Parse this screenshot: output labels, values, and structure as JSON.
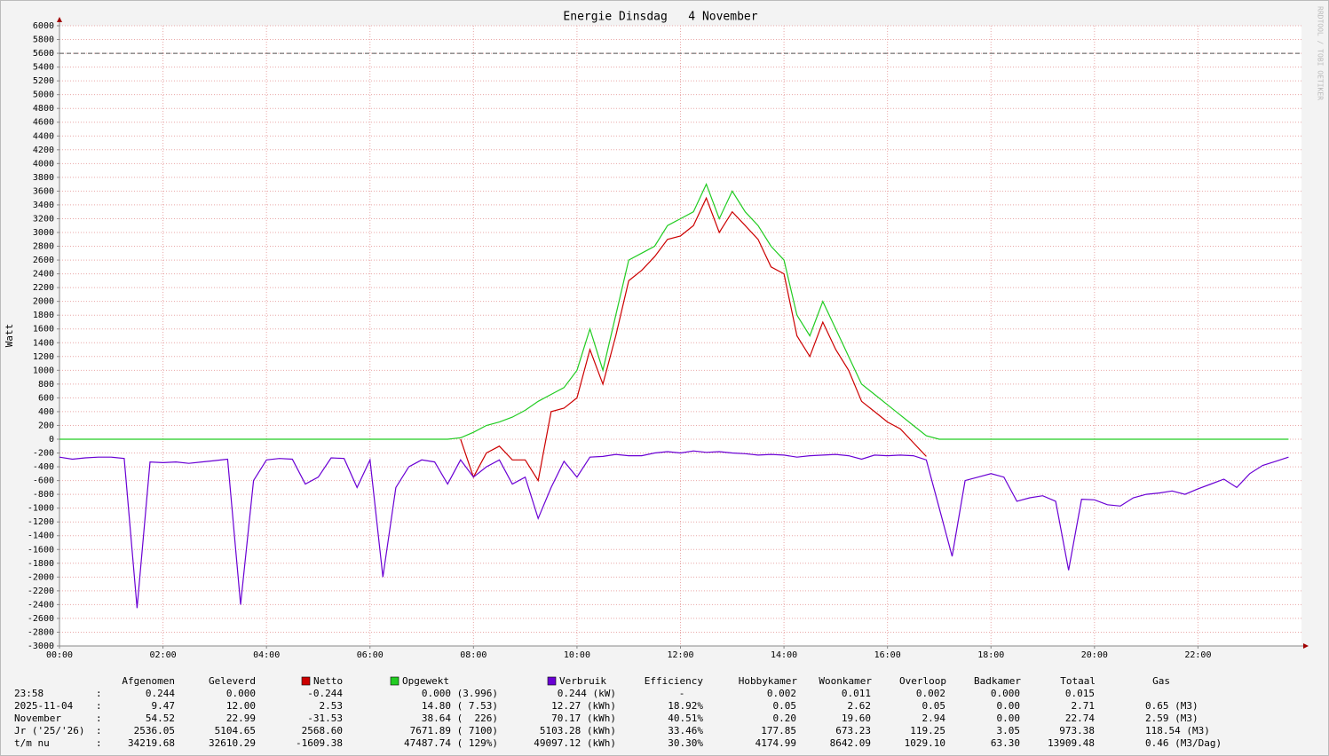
{
  "chart_data": {
    "type": "line",
    "title": "Energie Dinsdag   4 November",
    "y_label": "Watt",
    "watermark": "RRDTOOL / TOBI OETIKER",
    "x": [
      0,
      0.25,
      0.5,
      0.75,
      1,
      1.25,
      1.5,
      1.75,
      2,
      2.25,
      2.5,
      2.75,
      3,
      3.25,
      3.5,
      3.75,
      4,
      4.25,
      4.5,
      4.75,
      5,
      5.25,
      5.5,
      5.75,
      6,
      6.25,
      6.5,
      6.75,
      7,
      7.25,
      7.5,
      7.75,
      8,
      8.25,
      8.5,
      8.75,
      9,
      9.25,
      9.5,
      9.75,
      10,
      10.25,
      10.5,
      10.75,
      11,
      11.25,
      11.5,
      11.75,
      12,
      12.25,
      12.5,
      12.75,
      13,
      13.25,
      13.5,
      13.75,
      14,
      14.25,
      14.5,
      14.75,
      15,
      15.25,
      15.5,
      15.75,
      16,
      16.25,
      16.5,
      16.75,
      17,
      17.25,
      17.5,
      17.75,
      18,
      18.25,
      18.5,
      18.75,
      19,
      19.25,
      19.5,
      19.75,
      20,
      20.25,
      20.5,
      20.75,
      21,
      21.25,
      21.5,
      21.75,
      22,
      22.25,
      22.5,
      22.75,
      23,
      23.25,
      23.5,
      23.75
    ],
    "series": [
      {
        "name": "Netto",
        "color": "#cc0000",
        "values": [
          null,
          null,
          null,
          null,
          null,
          null,
          null,
          null,
          null,
          null,
          null,
          null,
          null,
          null,
          null,
          null,
          null,
          null,
          null,
          null,
          null,
          null,
          null,
          null,
          null,
          null,
          null,
          null,
          null,
          null,
          null,
          0,
          -550,
          -200,
          -100,
          -300,
          -300,
          -600,
          400,
          450,
          600,
          1300,
          800,
          1500,
          2300,
          2450,
          2650,
          2900,
          2950,
          3100,
          3500,
          3000,
          3300,
          3100,
          2900,
          2500,
          2400,
          1500,
          1200,
          1700,
          1300,
          1000,
          550,
          400,
          250,
          150,
          -50,
          -250,
          null,
          null,
          null,
          null,
          null,
          null,
          null,
          null,
          null,
          null,
          null,
          null,
          null,
          null,
          null,
          null,
          null,
          null,
          null,
          null,
          null,
          null,
          null,
          null,
          null,
          null,
          null,
          null
        ]
      },
      {
        "name": "Opgewekt",
        "color": "#22cc22",
        "values": [
          0,
          0,
          0,
          0,
          0,
          0,
          0,
          0,
          0,
          0,
          0,
          0,
          0,
          0,
          0,
          0,
          0,
          0,
          0,
          0,
          0,
          0,
          0,
          0,
          0,
          0,
          0,
          0,
          0,
          0,
          0,
          20,
          100,
          200,
          250,
          320,
          420,
          550,
          650,
          750,
          1000,
          1600,
          1000,
          1800,
          2600,
          2700,
          2800,
          3100,
          3200,
          3300,
          3700,
          3200,
          3600,
          3300,
          3100,
          2800,
          2600,
          1800,
          1500,
          2000,
          1600,
          1200,
          800,
          650,
          500,
          350,
          200,
          50,
          0,
          0,
          0,
          0,
          0,
          0,
          0,
          0,
          0,
          0,
          0,
          0,
          0,
          0,
          0,
          0,
          0,
          0,
          0,
          0,
          0,
          0,
          0,
          0,
          0,
          0,
          0,
          0
        ]
      },
      {
        "name": "Verbruik",
        "color": "#6a00d4",
        "values": [
          -260,
          -290,
          -270,
          -260,
          -260,
          -280,
          -2450,
          -330,
          -340,
          -330,
          -350,
          -330,
          -310,
          -290,
          -2400,
          -600,
          -300,
          -280,
          -290,
          -650,
          -550,
          -270,
          -280,
          -700,
          -300,
          -2000,
          -700,
          -400,
          -300,
          -330,
          -650,
          -300,
          -550,
          -400,
          -300,
          -650,
          -550,
          -1150,
          -700,
          -320,
          -550,
          -260,
          -250,
          -220,
          -240,
          -240,
          -200,
          -180,
          -200,
          -170,
          -190,
          -180,
          -200,
          -210,
          -230,
          -220,
          -230,
          -260,
          -240,
          -230,
          -220,
          -240,
          -290,
          -230,
          -240,
          -230,
          -240,
          -300,
          -1000,
          -1700,
          -600,
          -550,
          -500,
          -550,
          -900,
          -850,
          -820,
          -900,
          -1900,
          -870,
          -880,
          -950,
          -970,
          -850,
          -800,
          -780,
          -750,
          -800,
          -720,
          -650,
          -580,
          -700,
          -500,
          -380,
          -320,
          -260
        ]
      }
    ],
    "reference_line": 5600,
    "xlim": [
      0,
      24
    ],
    "xticks": [
      {
        "value": 0,
        "label": "00:00"
      },
      {
        "value": 2,
        "label": "02:00"
      },
      {
        "value": 4,
        "label": "04:00"
      },
      {
        "value": 6,
        "label": "06:00"
      },
      {
        "value": 8,
        "label": "08:00"
      },
      {
        "value": 10,
        "label": "10:00"
      },
      {
        "value": 12,
        "label": "12:00"
      },
      {
        "value": 14,
        "label": "14:00"
      },
      {
        "value": 16,
        "label": "16:00"
      },
      {
        "value": 18,
        "label": "18:00"
      },
      {
        "value": 20,
        "label": "20:00"
      },
      {
        "value": 22,
        "label": "22:00"
      }
    ],
    "ylim": [
      -3000,
      6000
    ],
    "yticks": [
      -3000,
      -2800,
      -2600,
      -2400,
      -2200,
      -2000,
      -1800,
      -1600,
      -1400,
      -1200,
      -1000,
      -800,
      -600,
      -400,
      -200,
      0,
      200,
      400,
      600,
      800,
      1000,
      1200,
      1400,
      1600,
      1800,
      2000,
      2200,
      2400,
      2600,
      2800,
      3000,
      3200,
      3400,
      3600,
      3800,
      4000,
      4200,
      4400,
      4600,
      4800,
      5000,
      5200,
      5400,
      5600,
      5800,
      6000
    ],
    "grid": true
  },
  "table": {
    "separator": ":",
    "header_left": [
      "Afgenomen",
      "Geleverd"
    ],
    "header_right": [
      "Efficiency",
      "Hobbykamer",
      "Woonkamer",
      "Overloop",
      "Badkamer",
      "Totaal",
      "Gas"
    ],
    "rows": [
      {
        "label": "23:58",
        "cells": [
          "0.244",
          "0.000",
          "-0.244",
          "0.000 (3.996)",
          "0.244 (kW)",
          "-",
          "0.002",
          "0.011",
          "0.002",
          "0.000",
          "0.015"
        ]
      },
      {
        "label": "2025-11-04",
        "cells": [
          "9.47",
          "12.00",
          "2.53",
          "14.80 ( 7.53)",
          "12.27 (kWh)",
          "18.92%",
          "0.05",
          "2.62",
          "0.05",
          "0.00",
          "2.71",
          "0.65 (M3)"
        ]
      },
      {
        "label": "November",
        "cells": [
          "54.52",
          "22.99",
          "-31.53",
          "38.64 (  226)",
          "70.17 (kWh)",
          "40.51%",
          "0.20",
          "19.60",
          "2.94",
          "0.00",
          "22.74",
          "2.59 (M3)"
        ]
      },
      {
        "label": "Jr ('25/'26)",
        "cells": [
          "2536.05",
          "5104.65",
          "2568.60",
          "7671.89 ( 7100)",
          "5103.28 (kWh)",
          "33.46%",
          "177.85",
          "673.23",
          "119.25",
          "3.05",
          "973.38",
          "118.54 (M3)"
        ]
      },
      {
        "label": "t/m nu",
        "cells": [
          "34219.68",
          "32610.29",
          "-1609.38",
          "47487.74 ( 129%)",
          "49097.12 (kWh)",
          "30.30%",
          "4174.99",
          "8642.09",
          "1029.10",
          "63.30",
          "13909.48",
          "0.46 (M3/Dag)"
        ]
      }
    ]
  }
}
